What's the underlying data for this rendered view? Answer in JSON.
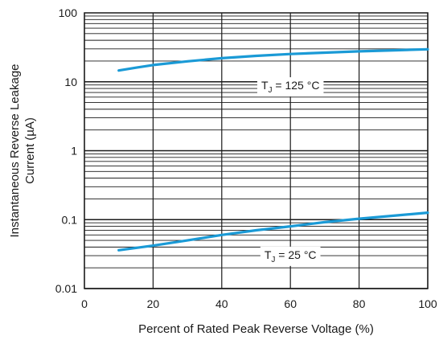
{
  "chart_data": {
    "type": "line",
    "xlabel": "Percent of Rated Peak Reverse Voltage (%)",
    "ylabel_line1": "Instantaneous Reverse Leakage",
    "ylabel_line2": "Current (µA)",
    "x_ticks": [
      "0",
      "20",
      "40",
      "60",
      "80",
      "100"
    ],
    "y_ticks": [
      "0.01",
      "0.1",
      "1",
      "10",
      "100"
    ],
    "xlim": [
      0,
      100
    ],
    "ylim": [
      0.01,
      100
    ],
    "y_scale": "log",
    "grid": true,
    "line_color": "#1a9ad6",
    "series": [
      {
        "label_main": "T",
        "label_sub": "J",
        "label_rest": " = 125 °C",
        "x": [
          10,
          15,
          20,
          30,
          40,
          50,
          60,
          70,
          80,
          90,
          100
        ],
        "y": [
          14.6,
          16.0,
          17.5,
          19.8,
          22.0,
          23.8,
          25.3,
          26.5,
          27.6,
          28.6,
          29.6
        ]
      },
      {
        "label_main": "T",
        "label_sub": "J",
        "label_rest": " = 25 °C",
        "x": [
          10,
          20,
          30,
          40,
          50,
          60,
          70,
          80,
          90,
          100
        ],
        "y": [
          0.036,
          0.042,
          0.05,
          0.06,
          0.07,
          0.08,
          0.092,
          0.103,
          0.114,
          0.126
        ]
      }
    ]
  }
}
